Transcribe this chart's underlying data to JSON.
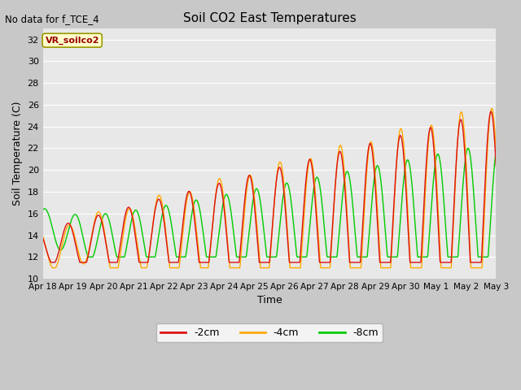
{
  "title": "Soil CO2 East Temperatures",
  "xlabel": "Time",
  "ylabel": "Soil Temperature (C)",
  "no_data_text": "No data for f_TCE_4",
  "annotation_text": "VR_soilco2",
  "ylim": [
    10,
    33
  ],
  "yticks": [
    10,
    12,
    14,
    16,
    18,
    20,
    22,
    24,
    26,
    28,
    30,
    32
  ],
  "fig_bg_color": "#c8c8c8",
  "plot_bg_color": "#e8e8e8",
  "line_colors": {
    "-2cm": "#dd1111",
    "-4cm": "#ffaa00",
    "-8cm": "#00cc00"
  },
  "tick_labels": [
    "Apr 18",
    "Apr 19",
    "Apr 20",
    "Apr 21",
    "Apr 22",
    "Apr 23",
    "Apr 24",
    "Apr 25",
    "Apr 26",
    "Apr 27",
    "Apr 28",
    "Apr 29",
    "Apr 30",
    "May 1",
    "May 2",
    "May 3"
  ],
  "num_days": 15
}
